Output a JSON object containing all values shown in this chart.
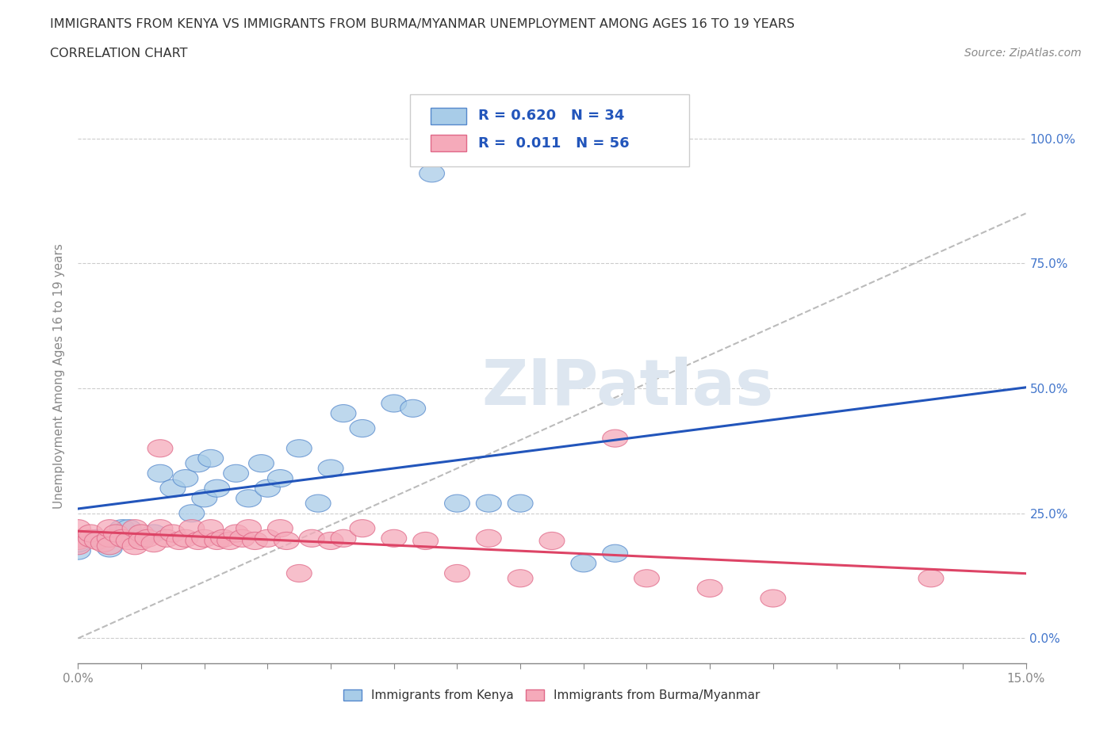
{
  "title_line1": "IMMIGRANTS FROM KENYA VS IMMIGRANTS FROM BURMA/MYANMAR UNEMPLOYMENT AMONG AGES 16 TO 19 YEARS",
  "title_line2": "CORRELATION CHART",
  "source_text": "Source: ZipAtlas.com",
  "ylabel": "Unemployment Among Ages 16 to 19 years",
  "xlim": [
    0.0,
    0.15
  ],
  "ylim": [
    -0.05,
    1.1
  ],
  "xticks": [
    0.0,
    0.05,
    0.1,
    0.15
  ],
  "xtick_labels_sparse": [
    "0.0%",
    "",
    "",
    "15.0%"
  ],
  "yticks": [
    0.0,
    0.25,
    0.5,
    0.75,
    1.0
  ],
  "ytick_labels": [
    "0.0%",
    "25.0%",
    "50.0%",
    "75.0%",
    "100.0%"
  ],
  "kenya_color": "#a8cce8",
  "burma_color": "#f5aaba",
  "kenya_edge_color": "#5588cc",
  "burma_edge_color": "#e06888",
  "kenya_line_color": "#2255bb",
  "burma_line_color": "#dd4466",
  "diag_line_color": "#aaaaaa",
  "watermark_color": "#dde6f0",
  "watermark_text": "ZIPatlas",
  "R_kenya": 0.62,
  "N_kenya": 34,
  "R_burma": 0.011,
  "N_burma": 56,
  "grid_color": "#cccccc",
  "bg_color": "#ffffff",
  "title_color": "#333333",
  "axis_color": "#888888",
  "right_tick_color": "#4477cc",
  "legend_text_color": "#2255bb"
}
